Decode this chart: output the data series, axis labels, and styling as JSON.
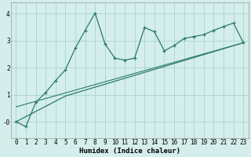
{
  "title": "",
  "xlabel": "Humidex (Indice chaleur)",
  "background_color": "#d4eeec",
  "grid_color": "#aad4d0",
  "line_color": "#2a7a6a",
  "xlim": [
    -0.5,
    23.5
  ],
  "ylim": [
    -0.6,
    4.4
  ],
  "xticks": [
    0,
    1,
    2,
    3,
    4,
    5,
    6,
    7,
    8,
    9,
    10,
    11,
    12,
    13,
    14,
    15,
    16,
    17,
    18,
    19,
    20,
    21,
    22,
    23
  ],
  "yticks": [
    0,
    1,
    2,
    3,
    4
  ],
  "ytick_labels": [
    "-0",
    "1",
    "2",
    "3",
    "4"
  ],
  "series1_x": [
    0,
    1,
    2,
    3,
    4,
    5,
    6,
    7,
    8,
    9,
    10,
    11,
    12,
    13,
    14,
    15,
    16,
    17,
    18,
    19,
    20,
    21,
    22,
    23
  ],
  "series1_y": [
    0.0,
    -0.18,
    0.72,
    1.08,
    1.52,
    1.92,
    2.72,
    3.38,
    4.02,
    2.88,
    2.35,
    2.28,
    2.35,
    3.48,
    3.33,
    2.62,
    2.82,
    3.08,
    3.15,
    3.22,
    3.38,
    3.52,
    3.65,
    2.92
  ],
  "series2_x": [
    0,
    5,
    23
  ],
  "series2_y": [
    0.0,
    0.95,
    2.92
  ],
  "series3_x": [
    0,
    23
  ],
  "series3_y": [
    0.55,
    2.92
  ],
  "fontsize_label": 6.5,
  "fontsize_tick": 5.5
}
